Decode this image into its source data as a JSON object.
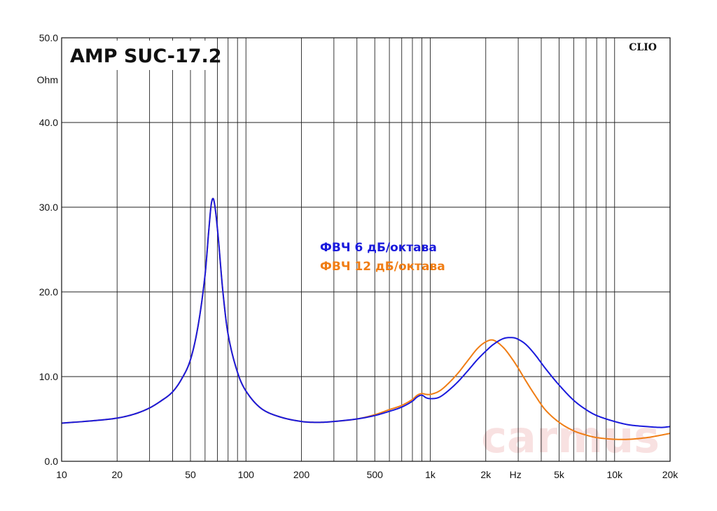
{
  "chart_data": {
    "type": "line",
    "title": "AMP SUC-17.2",
    "brand": "CLIO",
    "watermark": "carmus",
    "xscale": "log",
    "xlim": [
      10,
      20000
    ],
    "ylim": [
      0,
      50
    ],
    "grid": true,
    "y_unit_label": "Ohm",
    "x_unit_label": "Hz",
    "y_ticks": [
      "0.0",
      "10.0",
      "20.0",
      "30.0",
      "40.0",
      "50.0"
    ],
    "y_tick_values": [
      0,
      10,
      20,
      30,
      40,
      50
    ],
    "x_ticks": [
      "10",
      "20",
      "50",
      "100",
      "200",
      "500",
      "1k",
      "2k",
      "5k",
      "10k",
      "20k"
    ],
    "x_tick_values": [
      10,
      20,
      50,
      100,
      200,
      500,
      1000,
      2000,
      5000,
      10000,
      20000
    ],
    "series": [
      {
        "name": "ФВЧ 6 дБ/октава",
        "color": "#1a1adc",
        "x": [
          10,
          15,
          20,
          25,
          30,
          35,
          40,
          45,
          50,
          55,
          60,
          63,
          65,
          67,
          70,
          75,
          80,
          90,
          100,
          120,
          150,
          200,
          250,
          300,
          400,
          500,
          600,
          700,
          800,
          850,
          900,
          950,
          1000,
          1100,
          1200,
          1400,
          1600,
          1800,
          2000,
          2200,
          2500,
          2800,
          3000,
          3300,
          3700,
          4200,
          5000,
          6000,
          7000,
          8000,
          10000,
          12000,
          15000,
          18000,
          20000
        ],
        "y": [
          4.5,
          4.8,
          5.1,
          5.6,
          6.3,
          7.2,
          8.2,
          9.8,
          12.0,
          16.0,
          22.0,
          27.5,
          30.5,
          30.8,
          27.5,
          20.0,
          15.0,
          10.5,
          8.3,
          6.3,
          5.3,
          4.7,
          4.6,
          4.7,
          5.0,
          5.4,
          5.9,
          6.4,
          7.1,
          7.6,
          7.8,
          7.5,
          7.4,
          7.5,
          8.0,
          9.3,
          10.7,
          12.0,
          13.0,
          13.8,
          14.5,
          14.6,
          14.4,
          13.8,
          12.6,
          11.0,
          9.0,
          7.2,
          6.1,
          5.4,
          4.7,
          4.3,
          4.1,
          4.0,
          4.1
        ]
      },
      {
        "name": "ФВЧ 12 дБ/октава",
        "color": "#f07d14",
        "x": [
          10,
          15,
          20,
          25,
          30,
          35,
          40,
          45,
          50,
          55,
          60,
          63,
          65,
          67,
          70,
          75,
          80,
          90,
          100,
          120,
          150,
          200,
          250,
          300,
          400,
          500,
          600,
          700,
          800,
          850,
          900,
          950,
          1000,
          1100,
          1200,
          1400,
          1600,
          1800,
          2000,
          2200,
          2500,
          2800,
          3000,
          3300,
          3700,
          4200,
          5000,
          6000,
          7000,
          8000,
          10000,
          12000,
          15000,
          18000,
          20000
        ],
        "y": [
          4.5,
          4.8,
          5.1,
          5.6,
          6.3,
          7.2,
          8.2,
          9.8,
          12.0,
          16.0,
          22.0,
          27.5,
          30.5,
          30.8,
          27.5,
          20.0,
          15.0,
          10.5,
          8.3,
          6.3,
          5.3,
          4.7,
          4.6,
          4.7,
          5.0,
          5.5,
          6.1,
          6.6,
          7.3,
          7.8,
          8.0,
          7.9,
          7.9,
          8.2,
          8.8,
          10.3,
          11.9,
          13.3,
          14.1,
          14.3,
          13.4,
          12.0,
          11.0,
          9.5,
          7.8,
          6.1,
          4.6,
          3.6,
          3.1,
          2.8,
          2.6,
          2.6,
          2.8,
          3.1,
          3.3
        ]
      }
    ]
  }
}
